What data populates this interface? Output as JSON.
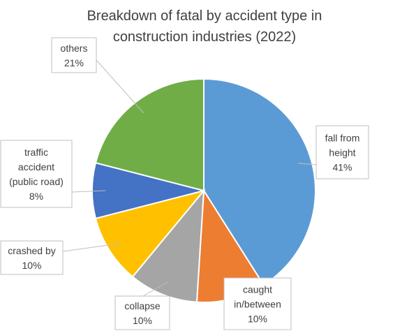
{
  "chart_data": {
    "type": "pie",
    "title_lines": [
      "Breakdown of fatal by accident type in",
      "construction industries (2022)"
    ],
    "slices": [
      {
        "label_lines": [
          "fall from",
          "height"
        ],
        "value": 41,
        "value_label": "41%",
        "color": "#5B9BD5"
      },
      {
        "label_lines": [
          "caught",
          "in/between"
        ],
        "value": 10,
        "value_label": "10%",
        "color": "#ED7D31"
      },
      {
        "label_lines": [
          "collapse"
        ],
        "value": 10,
        "value_label": "10%",
        "color": "#A5A5A5"
      },
      {
        "label_lines": [
          "crashed by"
        ],
        "value": 10,
        "value_label": "10%",
        "color": "#FFC000"
      },
      {
        "label_lines": [
          "traffic",
          "accident",
          "(public road)"
        ],
        "value": 8,
        "value_label": "8%",
        "color": "#4472C4"
      },
      {
        "label_lines": [
          "others"
        ],
        "value": 21,
        "value_label": "21%",
        "color": "#70AD47"
      }
    ]
  }
}
